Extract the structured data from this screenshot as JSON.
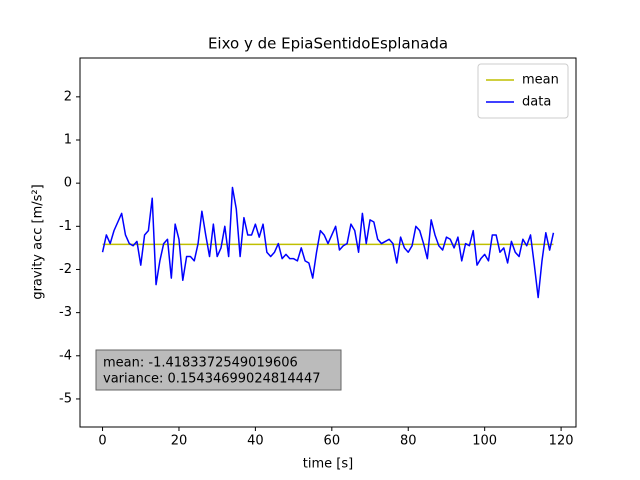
{
  "chart_data": {
    "type": "line",
    "title": "Eixo y de EpiaSentidoEsplanada",
    "xlabel": "time [s]",
    "ylabel": "gravity acc [m/s²]",
    "xlim": [
      -5.9,
      123.9
    ],
    "ylim": [
      -5.65,
      2.9
    ],
    "xticks": [
      0,
      20,
      40,
      60,
      80,
      100,
      120
    ],
    "yticks": [
      -5,
      -4,
      -3,
      -2,
      -1,
      0,
      1,
      2
    ],
    "legend": "upper right",
    "series": [
      {
        "name": "mean",
        "color": "#bfbf00",
        "x": [
          0,
          118
        ],
        "values": [
          -1.4183,
          -1.4183
        ]
      },
      {
        "name": "data",
        "color": "#0000ff",
        "x": [
          0,
          1,
          2,
          3,
          4,
          5,
          6,
          7,
          8,
          9,
          10,
          11,
          12,
          13,
          14,
          15,
          16,
          17,
          18,
          19,
          20,
          21,
          22,
          23,
          24,
          25,
          26,
          27,
          28,
          29,
          30,
          31,
          32,
          33,
          34,
          35,
          36,
          37,
          38,
          39,
          40,
          41,
          42,
          43,
          44,
          45,
          46,
          47,
          48,
          49,
          50,
          51,
          52,
          53,
          54,
          55,
          56,
          57,
          58,
          59,
          60,
          61,
          62,
          63,
          64,
          65,
          66,
          67,
          68,
          69,
          70,
          71,
          72,
          73,
          74,
          75,
          76,
          77,
          78,
          79,
          80,
          81,
          82,
          83,
          84,
          85,
          86,
          87,
          88,
          89,
          90,
          91,
          92,
          93,
          94,
          95,
          96,
          97,
          98,
          99,
          100,
          101,
          102,
          103,
          104,
          105,
          106,
          107,
          108,
          109,
          110,
          111,
          112,
          113,
          114,
          115,
          116,
          117,
          118
        ],
        "values": [
          -1.6,
          -1.2,
          -1.4,
          -1.1,
          -0.9,
          -0.7,
          -1.2,
          -1.4,
          -1.45,
          -1.35,
          -1.9,
          -1.2,
          -1.1,
          -0.35,
          -2.35,
          -1.8,
          -1.4,
          -1.3,
          -2.2,
          -0.95,
          -1.3,
          -2.25,
          -1.7,
          -1.7,
          -1.8,
          -1.4,
          -0.65,
          -1.2,
          -1.7,
          -0.95,
          -1.7,
          -1.5,
          -1.0,
          -1.7,
          -0.1,
          -0.6,
          -1.7,
          -0.8,
          -1.2,
          -1.2,
          -0.95,
          -1.25,
          -0.95,
          -1.6,
          -1.7,
          -1.6,
          -1.4,
          -1.75,
          -1.65,
          -1.75,
          -1.75,
          -1.8,
          -1.5,
          -1.8,
          -1.85,
          -2.2,
          -1.6,
          -1.1,
          -1.2,
          -1.4,
          -1.2,
          -1.0,
          -1.55,
          -1.45,
          -1.4,
          -0.95,
          -1.1,
          -1.6,
          -0.7,
          -1.4,
          -0.85,
          -0.9,
          -1.3,
          -1.4,
          -1.35,
          -1.3,
          -1.4,
          -1.85,
          -1.25,
          -1.5,
          -1.6,
          -1.45,
          -1.0,
          -1.1,
          -1.4,
          -1.75,
          -0.85,
          -1.2,
          -1.45,
          -1.55,
          -1.25,
          -1.3,
          -1.5,
          -1.25,
          -1.8,
          -1.4,
          -1.45,
          -1.1,
          -1.9,
          -1.75,
          -1.65,
          -1.8,
          -1.2,
          -1.2,
          -1.6,
          -1.5,
          -1.85,
          -1.35,
          -1.6,
          -1.7,
          -1.3,
          -1.45,
          -1.2,
          -1.9,
          -2.65,
          -1.8,
          -1.15,
          -1.55,
          -1.15
        ]
      }
    ],
    "annotation": [
      "mean: -1.4183372549019606",
      "variance: 0.15434699024814447"
    ]
  }
}
